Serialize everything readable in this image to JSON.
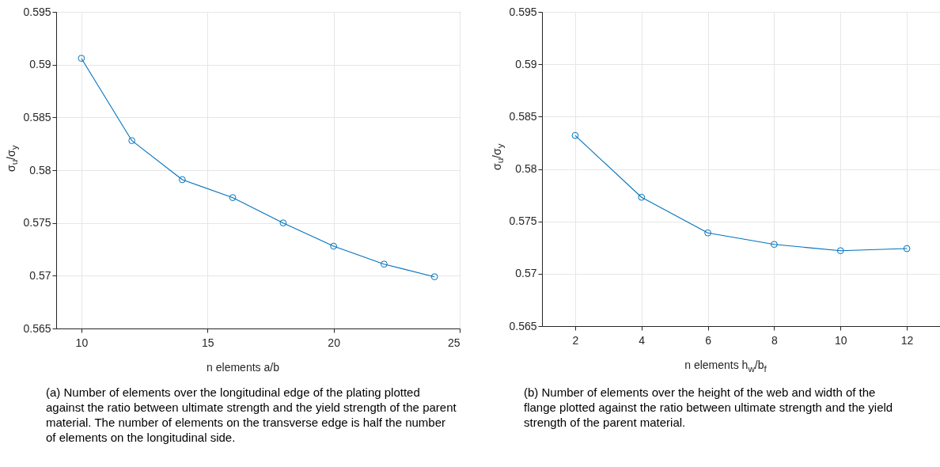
{
  "chart_data": [
    {
      "type": "line",
      "xlabel": "n elements a/b",
      "ylabel": "σ$_{u}$/σ$_{y}$",
      "x": [
        10,
        12,
        14,
        16,
        18,
        20,
        22,
        24
      ],
      "series": [
        {
          "color": "#0072bd",
          "values": [
            0.5906,
            0.5828,
            0.5791,
            0.5774,
            0.575,
            0.5728,
            0.5711,
            0.5699
          ]
        }
      ],
      "xlim": [
        9,
        25
      ],
      "xticks": [
        10,
        15,
        20,
        25
      ],
      "ylim": [
        0.565,
        0.595
      ],
      "yticks": [
        0.565,
        0.57,
        0.575,
        0.58,
        0.585,
        0.59,
        0.595
      ],
      "grid": true,
      "marker": "circle",
      "line_style": "solid",
      "annotations": [
        "(a) Number of elements over the longitudinal edge of the plating plotted against the ratio between ultimate strength and the yield strength of the parent material.  The number of elements on the transverse edge is half the number of elements on the longitudinal side."
      ]
    },
    {
      "type": "line",
      "xlabel": "n elements h$_{w}$/b$_{f}$",
      "ylabel": "σ$_{u}$/σ$_{y}$",
      "x": [
        2,
        4,
        6,
        8,
        10,
        12
      ],
      "series": [
        {
          "color": "#0072bd",
          "values": [
            0.5832,
            0.5773,
            0.5739,
            0.5728,
            0.5722,
            0.5724
          ]
        }
      ],
      "xlim": [
        1,
        13
      ],
      "xticks": [
        2,
        4,
        6,
        8,
        10,
        12
      ],
      "ylim": [
        0.565,
        0.595
      ],
      "yticks": [
        0.565,
        0.57,
        0.575,
        0.58,
        0.585,
        0.59,
        0.595
      ],
      "grid": true,
      "marker": "circle",
      "line_style": "solid",
      "annotations": [
        "(b) Number of elements over the height of the web and width of the flange plotted against the ratio between ultimate strength and the yield strength of the parent material."
      ]
    }
  ]
}
